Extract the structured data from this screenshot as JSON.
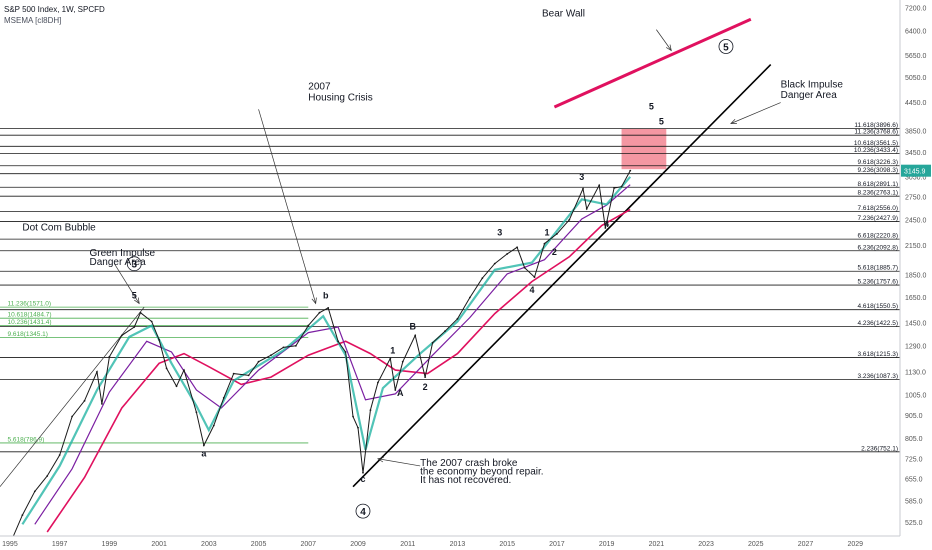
{
  "header": {
    "symbol_line": "S&P 500 Index, 1W, SPCFD",
    "indicator_line": "MSEMA [cl8DH]"
  },
  "chart_data": {
    "type": "line",
    "title": "S&P 500 Index, 1W, SPCFD",
    "indicator": "MSEMA [cl8DH]",
    "xlabel": "",
    "ylabel": "",
    "x_range": [
      1994.6,
      2030.8
    ],
    "ylim": [
      490,
      7500
    ],
    "y_scale": "log",
    "grid": false,
    "last_price": "3145.9",
    "colors": {
      "price": "#1a1a1a",
      "fast_ema": "#26b5a5",
      "mid_ema": "#7b1fa2",
      "slow_ema": "#e0115f",
      "green_fib": "#4caf50",
      "black_fib": "#1a1a1a",
      "bear_wall": "#e0115f",
      "impulse_line": "#000000",
      "target_box": "#f06b7a",
      "last_price_bg": "#26a69a"
    },
    "x_ticks": [
      "1995",
      "1997",
      "1999",
      "2001",
      "2003",
      "2005",
      "2007",
      "2009",
      "2011",
      "2013",
      "2015",
      "2017",
      "2019",
      "2021",
      "2023",
      "2025",
      "2027",
      "2029"
    ],
    "y_ticks": [
      "7200.0",
      "6400.0",
      "5650.0",
      "5050.0",
      "4450.0",
      "3850.0",
      "3450.0",
      "3050.0",
      "2750.0",
      "2450.0",
      "2150.0",
      "1850.0",
      "1650.0",
      "1450.0",
      "1290.0",
      "1130.0",
      "1005.0",
      "905.0",
      "805.0",
      "725.0",
      "655.0",
      "585.0",
      "525.0"
    ],
    "price_series": [
      {
        "x": 1995.0,
        "y": 470
      },
      {
        "x": 1995.5,
        "y": 545
      },
      {
        "x": 1996.0,
        "y": 615
      },
      {
        "x": 1996.5,
        "y": 665
      },
      {
        "x": 1997.0,
        "y": 740
      },
      {
        "x": 1997.5,
        "y": 900
      },
      {
        "x": 1998.0,
        "y": 975
      },
      {
        "x": 1998.5,
        "y": 1130
      },
      {
        "x": 1998.7,
        "y": 960
      },
      {
        "x": 1999.0,
        "y": 1220
      },
      {
        "x": 1999.5,
        "y": 1360
      },
      {
        "x": 2000.0,
        "y": 1420
      },
      {
        "x": 2000.25,
        "y": 1527
      },
      {
        "x": 2000.7,
        "y": 1460
      },
      {
        "x": 2001.0,
        "y": 1330
      },
      {
        "x": 2001.3,
        "y": 1150
      },
      {
        "x": 2001.7,
        "y": 1050
      },
      {
        "x": 2002.0,
        "y": 1140
      },
      {
        "x": 2002.5,
        "y": 920
      },
      {
        "x": 2002.8,
        "y": 777
      },
      {
        "x": 2003.2,
        "y": 860
      },
      {
        "x": 2003.6,
        "y": 990
      },
      {
        "x": 2004.0,
        "y": 1120
      },
      {
        "x": 2004.6,
        "y": 1110
      },
      {
        "x": 2005.0,
        "y": 1190
      },
      {
        "x": 2005.5,
        "y": 1230
      },
      {
        "x": 2006.0,
        "y": 1280
      },
      {
        "x": 2006.5,
        "y": 1290
      },
      {
        "x": 2007.0,
        "y": 1430
      },
      {
        "x": 2007.45,
        "y": 1527
      },
      {
        "x": 2007.8,
        "y": 1565
      },
      {
        "x": 2008.2,
        "y": 1320
      },
      {
        "x": 2008.5,
        "y": 1250
      },
      {
        "x": 2008.8,
        "y": 900
      },
      {
        "x": 2009.0,
        "y": 850
      },
      {
        "x": 2009.2,
        "y": 676
      },
      {
        "x": 2009.5,
        "y": 930
      },
      {
        "x": 2009.8,
        "y": 1070
      },
      {
        "x": 2010.3,
        "y": 1210
      },
      {
        "x": 2010.5,
        "y": 1030
      },
      {
        "x": 2010.8,
        "y": 1190
      },
      {
        "x": 2011.3,
        "y": 1360
      },
      {
        "x": 2011.7,
        "y": 1100
      },
      {
        "x": 2012.0,
        "y": 1310
      },
      {
        "x": 2012.5,
        "y": 1390
      },
      {
        "x": 2013.0,
        "y": 1480
      },
      {
        "x": 2013.5,
        "y": 1650
      },
      {
        "x": 2014.0,
        "y": 1820
      },
      {
        "x": 2014.5,
        "y": 1960
      },
      {
        "x": 2015.0,
        "y": 2060
      },
      {
        "x": 2015.4,
        "y": 2130
      },
      {
        "x": 2015.7,
        "y": 1920
      },
      {
        "x": 2016.1,
        "y": 1830
      },
      {
        "x": 2016.5,
        "y": 2170
      },
      {
        "x": 2017.0,
        "y": 2280
      },
      {
        "x": 2017.5,
        "y": 2450
      },
      {
        "x": 2018.05,
        "y": 2870
      },
      {
        "x": 2018.2,
        "y": 2590
      },
      {
        "x": 2018.7,
        "y": 2920
      },
      {
        "x": 2018.95,
        "y": 2350
      },
      {
        "x": 2019.3,
        "y": 2880
      },
      {
        "x": 2019.6,
        "y": 2900
      },
      {
        "x": 2019.95,
        "y": 3145.9
      }
    ],
    "fast_ema": [
      {
        "x": 1995.5,
        "y": 520
      },
      {
        "x": 1997.0,
        "y": 700
      },
      {
        "x": 1998.5,
        "y": 1030
      },
      {
        "x": 1999.8,
        "y": 1350
      },
      {
        "x": 2000.7,
        "y": 1430
      },
      {
        "x": 2001.5,
        "y": 1180
      },
      {
        "x": 2002.5,
        "y": 950
      },
      {
        "x": 2003.0,
        "y": 840
      },
      {
        "x": 2004.0,
        "y": 1080
      },
      {
        "x": 2006.0,
        "y": 1260
      },
      {
        "x": 2007.6,
        "y": 1500
      },
      {
        "x": 2008.5,
        "y": 1230
      },
      {
        "x": 2009.3,
        "y": 760
      },
      {
        "x": 2010.0,
        "y": 1040
      },
      {
        "x": 2011.5,
        "y": 1240
      },
      {
        "x": 2013.0,
        "y": 1460
      },
      {
        "x": 2014.5,
        "y": 1900
      },
      {
        "x": 2016.0,
        "y": 1970
      },
      {
        "x": 2018.0,
        "y": 2720
      },
      {
        "x": 2019.0,
        "y": 2650
      },
      {
        "x": 2019.95,
        "y": 3050
      }
    ],
    "mid_ema": [
      {
        "x": 1996.0,
        "y": 520
      },
      {
        "x": 1997.5,
        "y": 690
      },
      {
        "x": 1999.0,
        "y": 1020
      },
      {
        "x": 2000.5,
        "y": 1320
      },
      {
        "x": 2001.5,
        "y": 1250
      },
      {
        "x": 2002.5,
        "y": 1030
      },
      {
        "x": 2003.5,
        "y": 940
      },
      {
        "x": 2005.0,
        "y": 1140
      },
      {
        "x": 2007.0,
        "y": 1380
      },
      {
        "x": 2008.2,
        "y": 1420
      },
      {
        "x": 2009.3,
        "y": 980
      },
      {
        "x": 2010.5,
        "y": 1010
      },
      {
        "x": 2012.0,
        "y": 1230
      },
      {
        "x": 2013.5,
        "y": 1490
      },
      {
        "x": 2015.0,
        "y": 1860
      },
      {
        "x": 2016.5,
        "y": 2000
      },
      {
        "x": 2018.0,
        "y": 2460
      },
      {
        "x": 2019.0,
        "y": 2640
      },
      {
        "x": 2019.95,
        "y": 2930
      }
    ],
    "slow_ema": [
      {
        "x": 1996.5,
        "y": 500
      },
      {
        "x": 1998.0,
        "y": 660
      },
      {
        "x": 1999.5,
        "y": 940
      },
      {
        "x": 2001.0,
        "y": 1180
      },
      {
        "x": 2002.0,
        "y": 1240
      },
      {
        "x": 2003.0,
        "y": 1160
      },
      {
        "x": 2004.3,
        "y": 1060
      },
      {
        "x": 2005.5,
        "y": 1100
      },
      {
        "x": 2007.0,
        "y": 1230
      },
      {
        "x": 2008.5,
        "y": 1320
      },
      {
        "x": 2009.5,
        "y": 1240
      },
      {
        "x": 2010.5,
        "y": 1140
      },
      {
        "x": 2011.8,
        "y": 1120
      },
      {
        "x": 2013.0,
        "y": 1240
      },
      {
        "x": 2014.5,
        "y": 1520
      },
      {
        "x": 2016.0,
        "y": 1790
      },
      {
        "x": 2017.5,
        "y": 2030
      },
      {
        "x": 2018.8,
        "y": 2380
      },
      {
        "x": 2019.95,
        "y": 2580
      }
    ],
    "green_fib_levels": [
      {
        "label": "11.236(1571.0)",
        "value": 1571.0
      },
      {
        "label": "10.618(1484.7)",
        "value": 1484.7
      },
      {
        "label": "10.236(1431.4)",
        "value": 1431.4
      },
      {
        "label": "9.618(1345.1)",
        "value": 1345.1
      },
      {
        "label": "5.618(786.9)",
        "value": 786.9
      }
    ],
    "black_fib_levels": [
      {
        "label": "11.618(3896.6)",
        "value": 3896.6
      },
      {
        "label": "11.236(3768.6)",
        "value": 3768.6
      },
      {
        "label": "10.618(3561.5)",
        "value": 3561.5
      },
      {
        "label": "10.236(3433.4)",
        "value": 3433.4
      },
      {
        "label": "9.618(3226.3)",
        "value": 3226.3
      },
      {
        "label": "9.236(3098.3)",
        "value": 3098.3
      },
      {
        "label": "8.618(2891.1)",
        "value": 2891.1
      },
      {
        "label": "8.236(2763.1)",
        "value": 2763.1
      },
      {
        "label": "7.618(2556.0)",
        "value": 2556.0
      },
      {
        "label": "7.236(2427.9)",
        "value": 2427.9
      },
      {
        "label": "6.618(2220.8)",
        "value": 2220.8
      },
      {
        "label": "6.236(2092.8)",
        "value": 2092.8
      },
      {
        "label": "5.618(1885.7)",
        "value": 1885.7
      },
      {
        "label": "5.236(1757.6)",
        "value": 1757.6
      },
      {
        "label": "4.618(1550.5)",
        "value": 1550.5
      },
      {
        "label": "4.236(1422.5)",
        "value": 1422.5
      },
      {
        "label": "3.618(1215.3)",
        "value": 1215.3
      },
      {
        "label": "3.236(1087.3)",
        "value": 1087.3
      },
      {
        "label": "2.236(752.1)",
        "value": 752.1
      }
    ],
    "target_box": {
      "x0": 2019.6,
      "x1": 2021.4,
      "y0": 3170,
      "y1": 3896.6
    },
    "impulse_line": {
      "x0": 2008.8,
      "y0": 630,
      "x1": 2025.6,
      "y1": 5400
    },
    "green_impulse_line": {
      "x0": 1994.6,
      "y0": 630,
      "x1": 2000.4,
      "y1": 1571
    },
    "bear_wall": {
      "x0": 2016.9,
      "y0": 4350,
      "x1": 2024.8,
      "y1": 6800
    },
    "text_annotations": [
      {
        "text": "Bear Wall",
        "x": 2016.4,
        "y": 6900
      },
      {
        "text": "Black Impulse",
        "x": 2026.0,
        "y": 4800
      },
      {
        "text": "Danger Area",
        "x": 2026.0,
        "y": 4550
      },
      {
        "text": "2007",
        "x": 2007.0,
        "y": 4750
      },
      {
        "text": "Housing Crisis",
        "x": 2007.0,
        "y": 4500
      },
      {
        "text": "Dot Com Bubble",
        "x": 1995.5,
        "y": 2320
      },
      {
        "text": "Green Impulse",
        "x": 1998.2,
        "y": 2040
      },
      {
        "text": "Danger Area",
        "x": 1998.2,
        "y": 1945
      },
      {
        "text": "The 2007 crash broke",
        "x": 2011.5,
        "y": 700
      },
      {
        "text": "the economy beyond repair.",
        "x": 2011.5,
        "y": 670
      },
      {
        "text": "It has not recovered.",
        "x": 2011.5,
        "y": 641
      }
    ],
    "wave_labels": [
      {
        "text": "5",
        "x": 2000.0,
        "y": 1640,
        "circled": false
      },
      {
        "text": "3",
        "x": 2000.0,
        "y": 1920,
        "circled": true
      },
      {
        "text": "a",
        "x": 2002.8,
        "y": 735,
        "circled": false
      },
      {
        "text": "b",
        "x": 2007.7,
        "y": 1640,
        "circled": false
      },
      {
        "text": "c",
        "x": 2009.2,
        "y": 645,
        "circled": false
      },
      {
        "text": "4",
        "x": 2009.2,
        "y": 545,
        "circled": true
      },
      {
        "text": "1",
        "x": 2010.4,
        "y": 1240,
        "circled": false
      },
      {
        "text": "A",
        "x": 2010.7,
        "y": 1000,
        "circled": false
      },
      {
        "text": "B",
        "x": 2011.2,
        "y": 1400,
        "circled": false
      },
      {
        "text": "2",
        "x": 2011.7,
        "y": 1030,
        "circled": false
      },
      {
        "text": "3",
        "x": 2014.7,
        "y": 2260,
        "circled": false
      },
      {
        "text": "4",
        "x": 2016.0,
        "y": 1690,
        "circled": false
      },
      {
        "text": "1",
        "x": 2016.6,
        "y": 2260,
        "circled": false
      },
      {
        "text": "2",
        "x": 2016.9,
        "y": 2050,
        "circled": false
      },
      {
        "text": "3",
        "x": 2018.0,
        "y": 3000,
        "circled": false
      },
      {
        "text": "4",
        "x": 2019.0,
        "y": 2360,
        "circled": false
      },
      {
        "text": "5",
        "x": 2020.8,
        "y": 4300,
        "circled": false
      },
      {
        "text": "5",
        "x": 2021.2,
        "y": 3980,
        "circled": false
      },
      {
        "text": "5",
        "x": 2023.8,
        "y": 5800,
        "circled": true
      }
    ],
    "arrows": [
      {
        "from": [
          2021.0,
          6450
        ],
        "to": [
          2021.6,
          5800
        ]
      },
      {
        "from": [
          2026.0,
          4450
        ],
        "to": [
          2024.0,
          4000
        ]
      },
      {
        "from": [
          2005.0,
          4300
        ],
        "to": [
          2007.3,
          1600
        ]
      },
      {
        "from": [
          1999.2,
          1960
        ],
        "to": [
          2000.2,
          1600
        ]
      },
      {
        "from": [
          2011.5,
          700
        ],
        "to": [
          2009.8,
          726
        ]
      }
    ]
  }
}
